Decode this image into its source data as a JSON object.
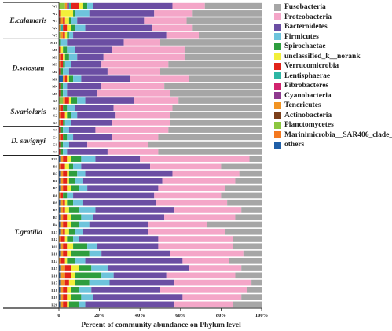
{
  "chart_data": {
    "type": "bar",
    "orientation": "horizontal",
    "stacked": true,
    "title": "",
    "xlabel": "Percent of community abundance on Phylum level",
    "ylabel": "",
    "xlim": [
      0,
      100
    ],
    "x_ticks": [
      "0",
      "20%",
      "40%",
      "60%",
      "80%",
      "100%"
    ],
    "legend_position": "right",
    "series": [
      {
        "name": "Fusobacteria",
        "color": "#a6a6a6"
      },
      {
        "name": "Proteobacteria",
        "color": "#f4a6c8"
      },
      {
        "name": "Bacteroidetes",
        "color": "#6b4ea3"
      },
      {
        "name": "Firmicutes",
        "color": "#6ec4dc"
      },
      {
        "name": "Spirochaetae",
        "color": "#2e9e3e"
      },
      {
        "name": "unclassified_k__norank",
        "color": "#f2ef3a"
      },
      {
        "name": "Verrucomicrobia",
        "color": "#e2231a"
      },
      {
        "name": "Lentisphaerae",
        "color": "#2db6a4"
      },
      {
        "name": "Fibrobacteres",
        "color": "#d1236e"
      },
      {
        "name": "Cyanobacteria",
        "color": "#8e3a8f"
      },
      {
        "name": "Tenericutes",
        "color": "#f29422"
      },
      {
        "name": "Actinobacteria",
        "color": "#7b3f1a"
      },
      {
        "name": "Planctomycetes",
        "color": "#8cc63f"
      },
      {
        "name": "Marinimicrobia__SAR406_clade_",
        "color": "#f47920"
      },
      {
        "name": "others",
        "color": "#1f5fa8"
      }
    ],
    "groups": [
      {
        "name": "E.calamaris",
        "samples": [
          {
            "label": "W1",
            "values": {
              "Fusobacteria": 28,
              "Proteobacteria": 16,
              "Bacteroidetes": 39,
              "Firmicutes": 3,
              "Spirochaetae": 2,
              "unclassified_k__norank": 2,
              "Verrucomicrobia": 4,
              "Planctomycetes": 3,
              "Tenericutes": 1,
              "Cyanobacteria": 1,
              "Lentisphaerae": 1
            }
          },
          {
            "label": "W2",
            "values": {
              "Fusobacteria": 34,
              "Proteobacteria": 19,
              "Bacteroidetes": 32,
              "Firmicutes": 7,
              "Spirochaetae": 1,
              "unclassified_k__norank": 6,
              "Verrucomicrobia": 1
            }
          },
          {
            "label": "W3",
            "values": {
              "Fusobacteria": 37,
              "Proteobacteria": 21,
              "Bacteroidetes": 33,
              "Firmicutes": 3,
              "Spirochaetae": 1,
              "unclassified_k__norank": 2,
              "Verrucomicrobia": 1,
              "Tenericutes": 1,
              "Actinobacteria": 1
            }
          },
          {
            "label": "W4",
            "values": {
              "Fusobacteria": 34,
              "Proteobacteria": 20,
              "Bacteroidetes": 33,
              "Firmicutes": 5,
              "Spirochaetae": 2,
              "unclassified_k__norank": 2,
              "Verrucomicrobia": 2,
              "Tenericutes": 1,
              "Lentisphaerae": 1
            }
          },
          {
            "label": "W5",
            "values": {
              "Fusobacteria": 31,
              "Proteobacteria": 16,
              "Bacteroidetes": 46,
              "Firmicutes": 2,
              "Spirochaetae": 1,
              "unclassified_k__norank": 1,
              "Verrucomicrobia": 1,
              "Planctomycetes": 1,
              "Tenericutes": 1
            }
          }
        ]
      },
      {
        "name": "D.setosum",
        "samples": [
          {
            "label": "M10",
            "values": {
              "Fusobacteria": 50,
              "Proteobacteria": 18,
              "Bacteroidetes": 28,
              "Firmicutes": 3,
              "Spirochaetae": 1
            }
          },
          {
            "label": "M8",
            "values": {
              "Fusobacteria": 38,
              "Proteobacteria": 36,
              "Bacteroidetes": 18,
              "Firmicutes": 4,
              "Spirochaetae": 2,
              "unclassified_k__norank": 1,
              "Verrucomicrobia": 1
            }
          },
          {
            "label": "M9",
            "values": {
              "Fusobacteria": 38,
              "Proteobacteria": 40,
              "Bacteroidetes": 13,
              "Firmicutes": 4,
              "Spirochaetae": 2,
              "unclassified_k__norank": 1,
              "Verrucomicrobia": 1,
              "Tenericutes": 1
            }
          },
          {
            "label": "M3",
            "values": {
              "Fusobacteria": 46,
              "Proteobacteria": 33,
              "Bacteroidetes": 15,
              "Firmicutes": 3,
              "Spirochaetae": 1,
              "Verrucomicrobia": 1,
              "Tenericutes": 1
            }
          },
          {
            "label": "M2",
            "values": {
              "Fusobacteria": 50,
              "Proteobacteria": 26,
              "Bacteroidetes": 19,
              "Firmicutes": 3,
              "Spirochaetae": 1,
              "Verrucomicrobia": 1
            }
          },
          {
            "label": "M6",
            "values": {
              "Fusobacteria": 36,
              "Proteobacteria": 29,
              "Bacteroidetes": 24,
              "Firmicutes": 4,
              "Spirochaetae": 2,
              "unclassified_k__norank": 1,
              "Verrucomicrobia": 1,
              "Tenericutes": 1,
              "others": 2
            }
          },
          {
            "label": "M4",
            "values": {
              "Fusobacteria": 48,
              "Proteobacteria": 31,
              "Bacteroidetes": 17,
              "Firmicutes": 2,
              "Spirochaetae": 1,
              "Verrucomicrobia": 1
            }
          },
          {
            "label": "M5",
            "values": {
              "Fusobacteria": 45,
              "Proteobacteria": 36,
              "Bacteroidetes": 15,
              "Firmicutes": 2,
              "Spirochaetae": 1,
              "Verrucomicrobia": 1
            }
          }
        ]
      },
      {
        "name": "S.variolaris",
        "samples": [
          {
            "label": "K5",
            "values": {
              "Fusobacteria": 41,
              "Proteobacteria": 22,
              "Bacteroidetes": 24,
              "Firmicutes": 4,
              "Spirochaetae": 3,
              "unclassified_k__norank": 1,
              "Verrucomicrobia": 2,
              "Planctomycetes": 2,
              "Tenericutes": 1
            }
          },
          {
            "label": "K1",
            "values": {
              "Fusobacteria": 44,
              "Proteobacteria": 29,
              "Bacteroidetes": 19,
              "Firmicutes": 4,
              "Spirochaetae": 2,
              "Verrucomicrobia": 1,
              "Tenericutes": 1
            }
          },
          {
            "label": "K2",
            "values": {
              "Fusobacteria": 45,
              "Proteobacteria": 27,
              "Bacteroidetes": 19,
              "Firmicutes": 3,
              "Spirochaetae": 2,
              "unclassified_k__norank": 1,
              "Verrucomicrobia": 2,
              "Tenericutes": 1
            }
          },
          {
            "label": "K3",
            "values": {
              "Fusobacteria": 45,
              "Proteobacteria": 29,
              "Bacteroidetes": 20,
              "Firmicutes": 3,
              "Spirochaetae": 1,
              "Verrucomicrobia": 1,
              "Tenericutes": 1
            }
          }
        ]
      },
      {
        "name": "D. savignyi",
        "samples": [
          {
            "label": "G3",
            "values": {
              "Fusobacteria": 46,
              "Proteobacteria": 36,
              "Bacteroidetes": 13,
              "Firmicutes": 3,
              "Spirochaetae": 1,
              "Verrucomicrobia": 1
            }
          },
          {
            "label": "G4",
            "values": {
              "Fusobacteria": 51,
              "Proteobacteria": 23,
              "Bacteroidetes": 19,
              "Firmicutes": 3,
              "Spirochaetae": 2,
              "Verrucomicrobia": 1,
              "Tenericutes": 1
            }
          },
          {
            "label": "G1",
            "values": {
              "Fusobacteria": 56,
              "Proteobacteria": 30,
              "Bacteroidetes": 9,
              "Firmicutes": 3,
              "Spirochaetae": 1,
              "Verrucomicrobia": 1
            }
          },
          {
            "label": "G2",
            "values": {
              "Fusobacteria": 51,
              "Proteobacteria": 25,
              "Bacteroidetes": 20,
              "Firmicutes": 2,
              "Spirochaetae": 1,
              "Verrucomicrobia": 1
            }
          }
        ]
      },
      {
        "name": "T.gratilla",
        "samples": [
          {
            "label": "B21",
            "values": {
              "Fusobacteria": 6,
              "Proteobacteria": 54,
              "Bacteroidetes": 22,
              "Firmicutes": 7,
              "Spirochaetae": 5,
              "unclassified_k__norank": 2,
              "Verrucomicrobia": 2,
              "Tenericutes": 1,
              "others": 1
            }
          },
          {
            "label": "B1",
            "values": {
              "Fusobacteria": 20,
              "Proteobacteria": 35,
              "Bacteroidetes": 34,
              "Firmicutes": 4,
              "Spirochaetae": 2,
              "unclassified_k__norank": 2,
              "Verrucomicrobia": 2,
              "Tenericutes": 1
            }
          },
          {
            "label": "B2",
            "values": {
              "Fusobacteria": 11,
              "Proteobacteria": 33,
              "Bacteroidetes": 43,
              "Firmicutes": 4,
              "Spirochaetae": 4,
              "unclassified_k__norank": 1,
              "Verrucomicrobia": 2,
              "Tenericutes": 1,
              "others": 1
            }
          },
          {
            "label": "B6",
            "values": {
              "Fusobacteria": 13,
              "Proteobacteria": 36,
              "Bacteroidetes": 39,
              "Firmicutes": 4,
              "Spirochaetae": 3,
              "unclassified_k__norank": 1,
              "Verrucomicrobia": 2,
              "Tenericutes": 1,
              "others": 1
            }
          },
          {
            "label": "B7",
            "values": {
              "Fusobacteria": 18,
              "Proteobacteria": 33,
              "Bacteroidetes": 35,
              "Firmicutes": 4,
              "Spirochaetae": 4,
              "unclassified_k__norank": 2,
              "Verrucomicrobia": 2,
              "Tenericutes": 1,
              "others": 1
            }
          },
          {
            "label": "B8",
            "values": {
              "Fusobacteria": 20,
              "Proteobacteria": 33,
              "Bacteroidetes": 40,
              "Firmicutes": 3,
              "Spirochaetae": 2,
              "Verrucomicrobia": 1,
              "Tenericutes": 1
            }
          },
          {
            "label": "B9",
            "values": {
              "Fusobacteria": 17,
              "Proteobacteria": 35,
              "Bacteroidetes": 36,
              "Firmicutes": 5,
              "Spirochaetae": 3,
              "unclassified_k__norank": 1,
              "Verrucomicrobia": 1,
              "Tenericutes": 1,
              "others": 1
            }
          },
          {
            "label": "B5",
            "values": {
              "Fusobacteria": 10,
              "Proteobacteria": 33,
              "Bacteroidetes": 39,
              "Firmicutes": 8,
              "Spirochaetae": 5,
              "unclassified_k__norank": 2,
              "Verrucomicrobia": 1,
              "Tenericutes": 1,
              "others": 1
            }
          },
          {
            "label": "B3",
            "values": {
              "Fusobacteria": 13,
              "Proteobacteria": 35,
              "Bacteroidetes": 35,
              "Firmicutes": 6,
              "Spirochaetae": 5,
              "unclassified_k__norank": 2,
              "Verrucomicrobia": 2,
              "Tenericutes": 1,
              "others": 1
            }
          },
          {
            "label": "B4",
            "values": {
              "Fusobacteria": 27,
              "Proteobacteria": 29,
              "Bacteroidetes": 29,
              "Firmicutes": 5,
              "Spirochaetae": 4,
              "unclassified_k__norank": 2,
              "Verrucomicrobia": 2,
              "Tenericutes": 1,
              "others": 1
            }
          },
          {
            "label": "B13",
            "values": {
              "Fusobacteria": 18,
              "Proteobacteria": 38,
              "Bacteroidetes": 32,
              "Firmicutes": 4,
              "Spirochaetae": 3,
              "unclassified_k__norank": 2,
              "Verrucomicrobia": 1,
              "Tenericutes": 1,
              "others": 1
            }
          },
          {
            "label": "B12",
            "values": {
              "Fusobacteria": 14,
              "Proteobacteria": 37,
              "Bacteroidetes": 39,
              "Firmicutes": 3,
              "Spirochaetae": 3,
              "unclassified_k__norank": 1,
              "Verrucomicrobia": 2,
              "Tenericutes": 1
            }
          },
          {
            "label": "B11",
            "values": {
              "Fusobacteria": 14,
              "Proteobacteria": 37,
              "Bacteroidetes": 30,
              "Firmicutes": 5,
              "Spirochaetae": 7,
              "unclassified_k__norank": 3,
              "Verrucomicrobia": 2,
              "Tenericutes": 1,
              "others": 1
            }
          },
          {
            "label": "B10",
            "values": {
              "Fusobacteria": 9,
              "Proteobacteria": 36,
              "Bacteroidetes": 34,
              "Firmicutes": 6,
              "Spirochaetae": 9,
              "unclassified_k__norank": 2,
              "Verrucomicrobia": 2,
              "Tenericutes": 1,
              "others": 1
            }
          },
          {
            "label": "B14",
            "values": {
              "Fusobacteria": 16,
              "Proteobacteria": 23,
              "Bacteroidetes": 48,
              "Firmicutes": 5,
              "Spirochaetae": 4,
              "unclassified_k__norank": 1,
              "Verrucomicrobia": 2,
              "Tenericutes": 1
            }
          },
          {
            "label": "B15",
            "values": {
              "Fusobacteria": 10,
              "Proteobacteria": 26,
              "Bacteroidetes": 40,
              "Firmicutes": 8,
              "Spirochaetae": 6,
              "unclassified_k__norank": 4,
              "Verrucomicrobia": 3,
              "Tenericutes": 2,
              "others": 1
            }
          },
          {
            "label": "B16",
            "values": {
              "Fusobacteria": 13,
              "Proteobacteria": 34,
              "Bacteroidetes": 26,
              "Firmicutes": 6,
              "Spirochaetae": 13,
              "unclassified_k__norank": 2,
              "Verrucomicrobia": 3,
              "Tenericutes": 2,
              "others": 1
            }
          },
          {
            "label": "B17",
            "values": {
              "Fusobacteria": 5,
              "Proteobacteria": 38,
              "Bacteroidetes": 32,
              "Firmicutes": 10,
              "Spirochaetae": 7,
              "unclassified_k__norank": 3,
              "Verrucomicrobia": 2,
              "Tenericutes": 2,
              "others": 1
            }
          },
          {
            "label": "B18",
            "values": {
              "Fusobacteria": 7,
              "Proteobacteria": 43,
              "Bacteroidetes": 34,
              "Firmicutes": 6,
              "Spirochaetae": 4,
              "unclassified_k__norank": 2,
              "Verrucomicrobia": 2,
              "Tenericutes": 1,
              "others": 1
            }
          },
          {
            "label": "B19",
            "values": {
              "Fusobacteria": 10,
              "Proteobacteria": 29,
              "Bacteroidetes": 44,
              "Firmicutes": 6,
              "Spirochaetae": 5,
              "unclassified_k__norank": 2,
              "Verrucomicrobia": 2,
              "Tenericutes": 1,
              "others": 1
            }
          },
          {
            "label": "B20",
            "values": {
              "Fusobacteria": 14,
              "Proteobacteria": 29,
              "Bacteroidetes": 44,
              "Firmicutes": 3,
              "Spirochaetae": 5,
              "unclassified_k__norank": 1,
              "Verrucomicrobia": 2,
              "Tenericutes": 1,
              "others": 1
            }
          }
        ]
      }
    ]
  }
}
